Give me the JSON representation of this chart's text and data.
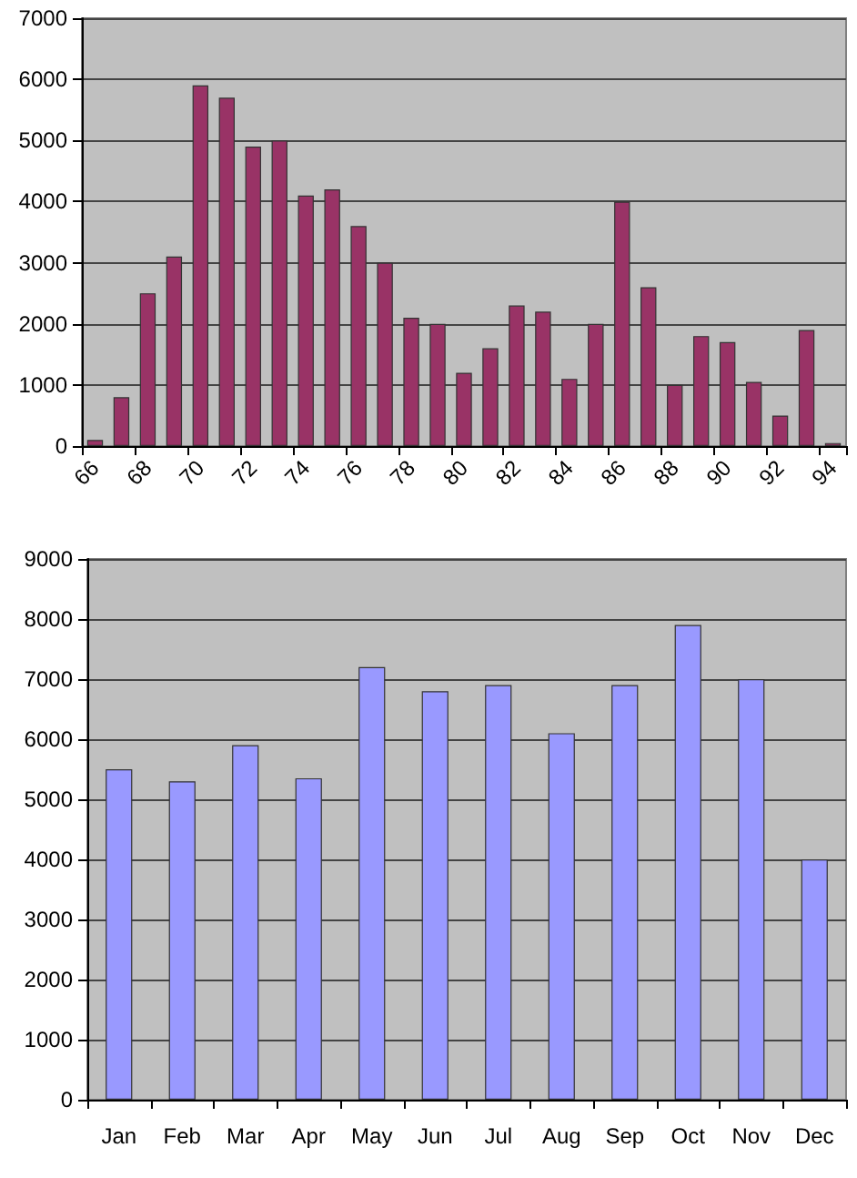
{
  "chart_data": [
    {
      "type": "bar",
      "categories": [
        "66",
        null,
        "68",
        null,
        "70",
        null,
        "72",
        null,
        "74",
        null,
        "76",
        null,
        "78",
        null,
        "80",
        null,
        "82",
        null,
        "84",
        null,
        "86",
        null,
        "88",
        null,
        "90",
        null,
        "92",
        null,
        "94"
      ],
      "values": [
        100,
        800,
        2500,
        3100,
        5900,
        5700,
        4900,
        5000,
        4100,
        4200,
        3600,
        3000,
        2100,
        2000,
        1200,
        1600,
        2300,
        2200,
        1100,
        2000,
        4000,
        2600,
        1000,
        1800,
        1700,
        1050,
        500,
        1900,
        50
      ],
      "color": "#993366",
      "ylim": [
        0,
        7000
      ],
      "yticks": [
        0,
        1000,
        2000,
        3000,
        4000,
        5000,
        6000,
        7000
      ],
      "grid": "y"
    },
    {
      "type": "bar",
      "categories": [
        "Jan",
        "Feb",
        "Mar",
        "Apr",
        "May",
        "Jun",
        "Jul",
        "Aug",
        "Sep",
        "Oct",
        "Nov",
        "Dec"
      ],
      "values": [
        5500,
        5300,
        5900,
        5350,
        7200,
        6800,
        6900,
        6100,
        6900,
        7900,
        7000,
        4000
      ],
      "color": "#9999ff",
      "ylim": [
        0,
        9000
      ],
      "yticks": [
        0,
        1000,
        2000,
        3000,
        4000,
        5000,
        6000,
        7000,
        8000,
        9000
      ],
      "grid": "y"
    }
  ]
}
